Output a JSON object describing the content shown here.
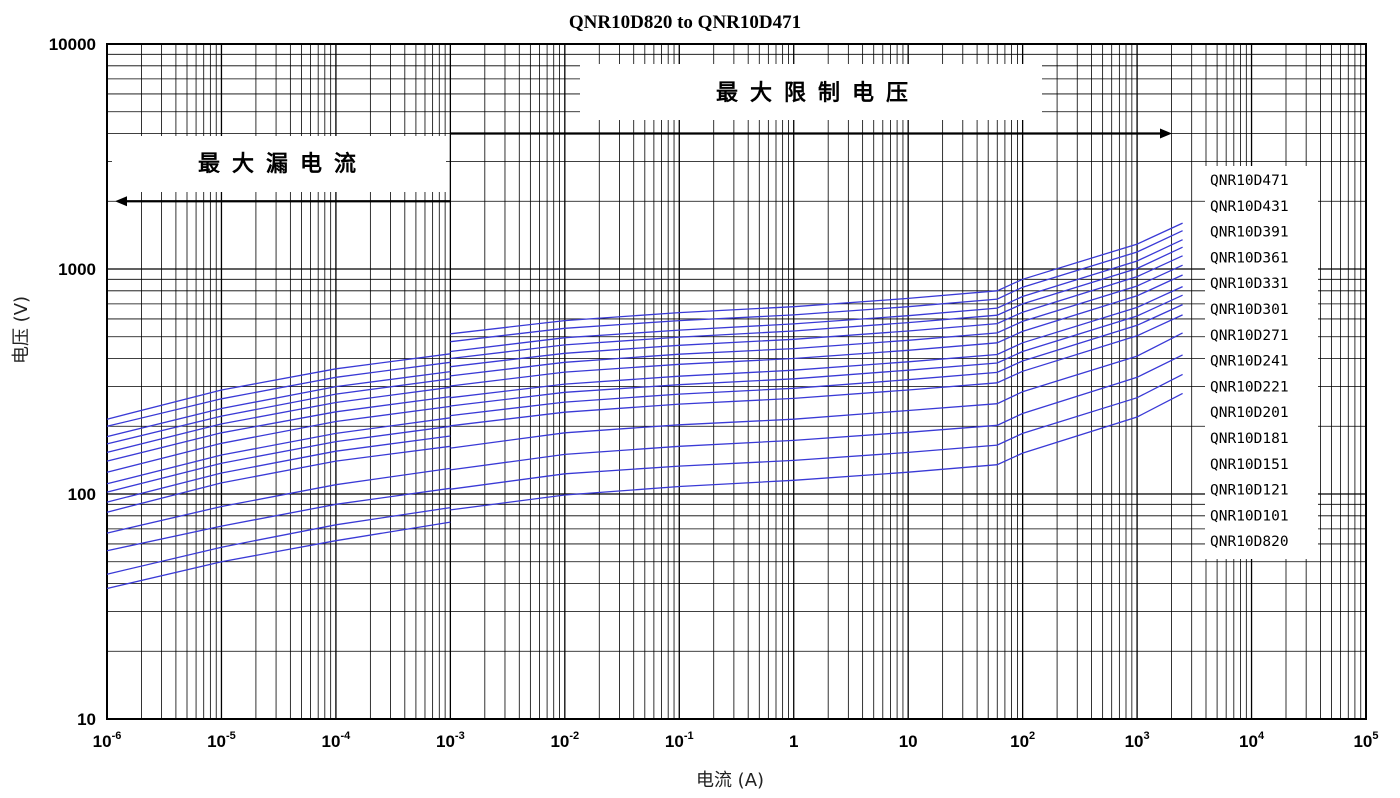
{
  "chart_data": {
    "type": "line",
    "title": "QNR10D820 to QNR10D471",
    "xlabel": "电流 (A)",
    "ylabel": "电压 (V)",
    "x_scale": "log",
    "y_scale": "log",
    "xlim": [
      1e-06,
      100000
    ],
    "ylim": [
      10,
      10000
    ],
    "grid": true,
    "x_ticks": [
      {
        "base": "10",
        "exp": "-6",
        "value": 1e-06
      },
      {
        "base": "10",
        "exp": "-5",
        "value": 1e-05
      },
      {
        "base": "10",
        "exp": "-4",
        "value": 0.0001
      },
      {
        "base": "10",
        "exp": "-3",
        "value": 0.001
      },
      {
        "base": "10",
        "exp": "-2",
        "value": 0.01
      },
      {
        "base": "10",
        "exp": "-1",
        "value": 0.1
      },
      {
        "base": "1",
        "exp": "",
        "value": 1
      },
      {
        "base": "10",
        "exp": "",
        "value": 10
      },
      {
        "base": "10",
        "exp": "2",
        "value": 100
      },
      {
        "base": "10",
        "exp": "3",
        "value": 1000
      },
      {
        "base": "10",
        "exp": "4",
        "value": 10000
      },
      {
        "base": "10",
        "exp": "5",
        "value": 100000
      }
    ],
    "y_ticks": [
      {
        "label": "10",
        "value": 10
      },
      {
        "label": "100",
        "value": 100
      },
      {
        "label": "1000",
        "value": 1000
      },
      {
        "label": "10000",
        "value": 10000
      }
    ],
    "regions": [
      {
        "label": "最大漏电流",
        "x_range": [
          1e-06,
          0.001
        ],
        "y_arrow": 2000,
        "direction": "left"
      },
      {
        "label": "最大限制电压",
        "x_range": [
          0.001,
          1000
        ],
        "y_arrow": 4000,
        "direction": "right"
      }
    ],
    "legend": {
      "placement": "right",
      "entries": [
        "QNR10D471",
        "QNR10D431",
        "QNR10D391",
        "QNR10D361",
        "QNR10D331",
        "QNR10D301",
        "QNR10D271",
        "QNR10D241",
        "QNR10D221",
        "QNR10D201",
        "QNR10D181",
        "QNR10D151",
        "QNR10D121",
        "QNR10D101",
        "QNR10D820"
      ]
    },
    "line_color": "#3a3ad6",
    "x": [
      1e-06,
      1e-05,
      0.0001,
      0.001,
      0.001,
      0.01,
      0.1,
      1,
      10,
      60,
      100,
      1000,
      2500
    ],
    "series": [
      {
        "name": "QNR10D471",
        "values": [
          215,
          290,
          360,
          420,
          515,
          590,
          640,
          680,
          740,
          800,
          900,
          1290,
          1600
        ]
      },
      {
        "name": "QNR10D431",
        "values": [
          200,
          265,
          330,
          385,
          475,
          545,
          590,
          625,
          680,
          735,
          830,
          1190,
          1480
        ]
      },
      {
        "name": "QNR10D391",
        "values": [
          180,
          240,
          300,
          350,
          430,
          495,
          535,
          570,
          620,
          670,
          755,
          1085,
          1350
        ]
      },
      {
        "name": "QNR10D361",
        "values": [
          167,
          222,
          278,
          325,
          400,
          460,
          498,
          530,
          578,
          623,
          700,
          1005,
          1250
        ]
      },
      {
        "name": "QNR10D331",
        "values": [
          153,
          205,
          255,
          298,
          368,
          422,
          458,
          487,
          530,
          572,
          643,
          925,
          1145
        ]
      },
      {
        "name": "QNR10D301",
        "values": [
          140,
          187,
          232,
          271,
          335,
          385,
          418,
          443,
          482,
          520,
          585,
          840,
          1040
        ]
      },
      {
        "name": "QNR10D271",
        "values": [
          125,
          168,
          210,
          245,
          302,
          348,
          377,
          400,
          435,
          470,
          528,
          760,
          940
        ]
      },
      {
        "name": "QNR10D241",
        "values": [
          111,
          149,
          186,
          218,
          268,
          308,
          334,
          355,
          387,
          417,
          470,
          675,
          835
        ]
      },
      {
        "name": "QNR10D221",
        "values": [
          102,
          137,
          171,
          200,
          246,
          283,
          306,
          325,
          355,
          382,
          430,
          618,
          765
        ]
      },
      {
        "name": "QNR10D201",
        "values": [
          92,
          124,
          155,
          181,
          223,
          256,
          278,
          295,
          322,
          347,
          390,
          562,
          695
        ]
      },
      {
        "name": "QNR10D181",
        "values": [
          83,
          112,
          140,
          163,
          201,
          231,
          251,
          266,
          290,
          312,
          351,
          505,
          625
        ]
      },
      {
        "name": "QNR10D151",
        "values": [
          67,
          88,
          110,
          130,
          160,
          187,
          203,
          215,
          235,
          252,
          285,
          410,
          520
        ]
      },
      {
        "name": "QNR10D121",
        "values": [
          56,
          72,
          90,
          106,
          128,
          150,
          163,
          173,
          188,
          202,
          228,
          330,
          415
        ]
      },
      {
        "name": "QNR10D101",
        "values": [
          44,
          58,
          73,
          87,
          105,
          123,
          133,
          141,
          153,
          165,
          186,
          268,
          340
        ]
      },
      {
        "name": "QNR10D820",
        "values": [
          38,
          50,
          62,
          75,
          85,
          99,
          108,
          115,
          125,
          135,
          152,
          220,
          280
        ]
      }
    ]
  }
}
